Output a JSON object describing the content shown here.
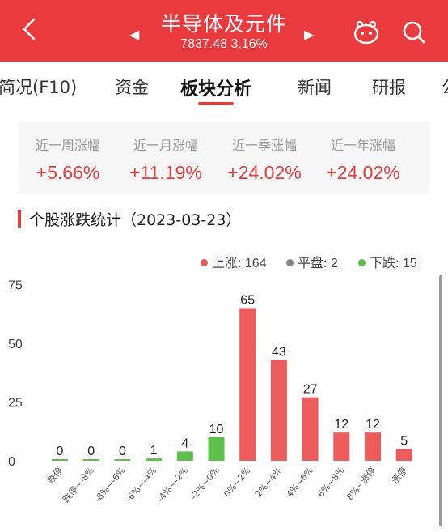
{
  "header": {
    "title": "半导体及元件",
    "subtitle": "7837.48 3.16%"
  },
  "tabs": [
    {
      "label": "简况(F10)"
    },
    {
      "label": "资金"
    },
    {
      "label": "板块分析"
    },
    {
      "label": "新闻"
    },
    {
      "label": "研报"
    }
  ],
  "stats": [
    {
      "label": "近一周涨幅",
      "value": "+5.66%"
    },
    {
      "label": "近一月涨幅",
      "value": "+11.19%"
    },
    {
      "label": "近一季涨幅",
      "value": "+24.02%"
    },
    {
      "label": "近一年涨幅",
      "value": "+24.02%"
    }
  ],
  "section": {
    "title": "个股涨跌统计（2023-03-23）"
  },
  "legend": {
    "up": "上涨: 164",
    "flat": "平盘: 2",
    "down": "下跌: 15"
  },
  "colors": {
    "brand": "#ea3a3d",
    "up": "#ee5b5b",
    "down": "#5cc04a",
    "flat": "#888888"
  },
  "chart_data": {
    "type": "bar",
    "categories": [
      "跌停",
      "跌停~-8%",
      "-8%~-6%",
      "-6%~-4%",
      "-4%~-2%",
      "-2%~0%",
      "0%~2%",
      "2%~4%",
      "4%~6%",
      "6%~8%",
      "8%~涨停",
      "涨停"
    ],
    "values": [
      0,
      0,
      0,
      1,
      4,
      10,
      65,
      43,
      27,
      12,
      12,
      5
    ],
    "colors": [
      "#5cc04a",
      "#5cc04a",
      "#5cc04a",
      "#5cc04a",
      "#5cc04a",
      "#5cc04a",
      "#ee5b5b",
      "#ee5b5b",
      "#ee5b5b",
      "#ee5b5b",
      "#ee5b5b",
      "#ee5b5b"
    ],
    "yticks": [
      0,
      25,
      50,
      75
    ],
    "ylim": [
      0,
      75
    ],
    "grid": false,
    "legend_position": "top-right"
  }
}
